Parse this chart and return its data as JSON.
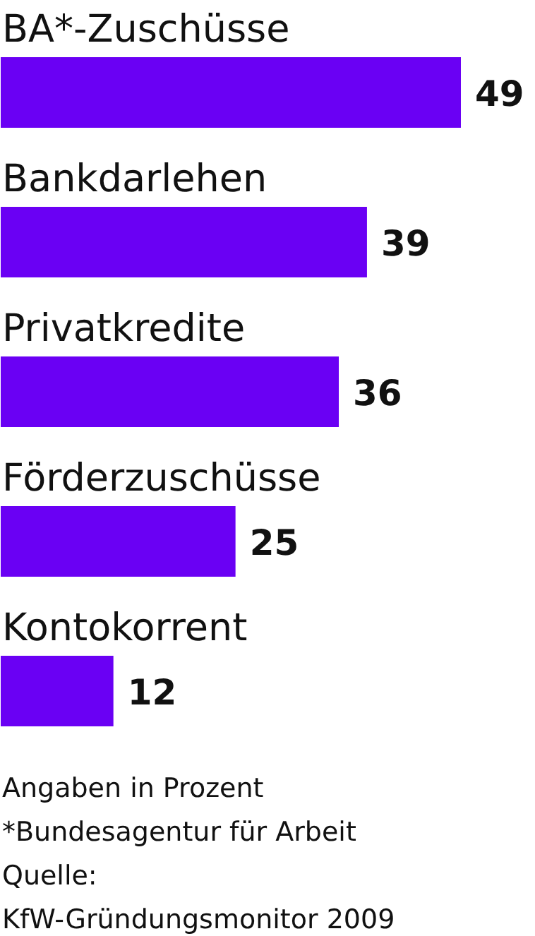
{
  "chart_data": {
    "type": "bar",
    "orientation": "horizontal",
    "categories": [
      "BA*-Zuschüsse",
      "Bankdarlehen",
      "Privatkredite",
      "Förderzuschüsse",
      "Kontokorrent"
    ],
    "values": [
      49,
      39,
      36,
      25,
      12
    ],
    "color": "#6a00f4",
    "data_labels": true,
    "annotations": [
      "Angaben in Prozent",
      "*Bundesagentur für Arbeit",
      "Quelle:",
      "KfW-Gründungsmonitor 2009"
    ]
  }
}
